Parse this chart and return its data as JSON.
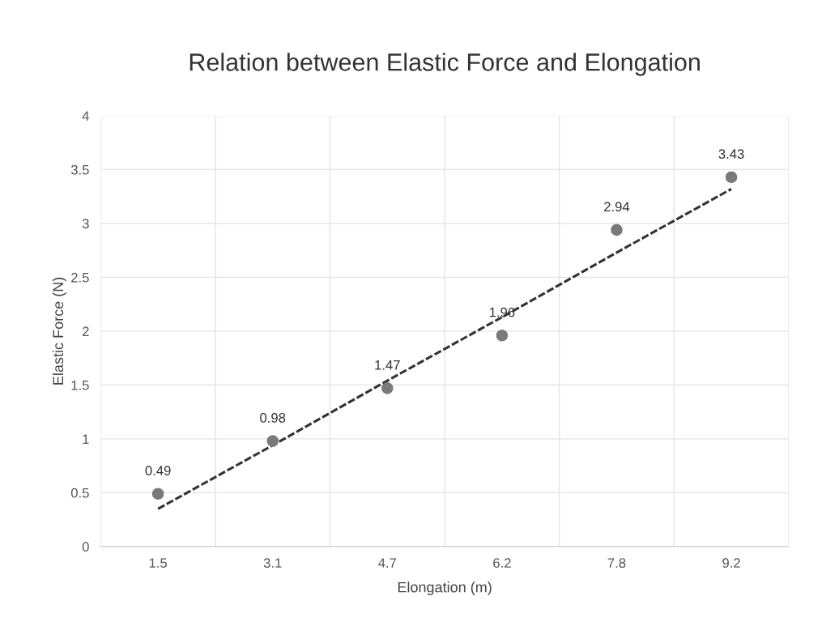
{
  "chart_data": {
    "type": "scatter",
    "title": "Relation between Elastic Force and Elongation",
    "xlabel": "Elongation (m)",
    "ylabel": "Elastic Force (N)",
    "categories": [
      "1.5",
      "3.1",
      "4.7",
      "6.2",
      "7.8",
      "9.2"
    ],
    "series": [
      {
        "color": "#7a7a7a",
        "values": [
          0.49,
          0.98,
          1.47,
          1.96,
          2.94,
          3.43
        ],
        "data_labels": true,
        "marker": "circle"
      },
      {
        "type": "line",
        "color": "#333333",
        "values": [
          0.35,
          0.94,
          1.54,
          2.13,
          2.73,
          3.32
        ],
        "line_style": "dashed",
        "marker": "none"
      }
    ],
    "ylim": [
      0,
      4
    ],
    "yticks": [
      0,
      0.5,
      1,
      1.5,
      2,
      2.5,
      3,
      3.5,
      4
    ],
    "grid": true,
    "legend": false
  }
}
